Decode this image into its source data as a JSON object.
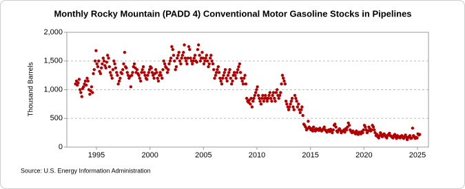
{
  "chart_data": {
    "type": "scatter",
    "title": "Monthly Rocky Mountain (PADD 4) Conventional Motor Gasoline Stocks in Pipelines",
    "y_label": "Thousand Barrels",
    "source": "Source: U.S. Energy Information Administration",
    "color": "#b30000",
    "grid": true,
    "xlim": [
      1992.23,
      2026.03
    ],
    "xticks": [
      1995,
      2000,
      2005,
      2010,
      2015,
      2020,
      2025
    ],
    "ylim": [
      0,
      2000
    ],
    "yticks": [
      0,
      500,
      {
        "value": 1000,
        "label": "1,000"
      },
      {
        "value": 1500,
        "label": "1,500"
      },
      {
        "value": 2000,
        "label": "2,000"
      }
    ],
    "x": [
      1993.04,
      1993.13,
      1993.21,
      1993.29,
      1993.38,
      1993.46,
      1993.54,
      1993.63,
      1993.71,
      1993.79,
      1993.88,
      1993.96,
      1994.04,
      1994.13,
      1994.21,
      1994.29,
      1994.38,
      1994.46,
      1994.54,
      1994.63,
      1994.71,
      1994.79,
      1994.88,
      1994.96,
      1995.04,
      1995.13,
      1995.21,
      1995.29,
      1995.38,
      1995.46,
      1995.54,
      1995.63,
      1995.71,
      1995.79,
      1995.88,
      1995.96,
      1996.04,
      1996.13,
      1996.21,
      1996.29,
      1996.38,
      1996.46,
      1996.54,
      1996.63,
      1996.71,
      1996.79,
      1996.88,
      1996.96,
      1997.04,
      1997.13,
      1997.21,
      1997.29,
      1997.38,
      1997.46,
      1997.54,
      1997.63,
      1997.71,
      1997.79,
      1997.88,
      1997.96,
      1998.04,
      1998.13,
      1998.21,
      1998.29,
      1998.38,
      1998.46,
      1998.54,
      1998.63,
      1998.71,
      1998.79,
      1998.88,
      1998.96,
      1999.04,
      1999.13,
      1999.21,
      1999.29,
      1999.38,
      1999.46,
      1999.54,
      1999.63,
      1999.71,
      1999.79,
      1999.88,
      1999.96,
      2000.04,
      2000.13,
      2000.21,
      2000.29,
      2000.38,
      2000.46,
      2000.54,
      2000.63,
      2000.71,
      2000.79,
      2000.88,
      2000.96,
      2001.04,
      2001.13,
      2001.21,
      2001.29,
      2001.38,
      2001.46,
      2001.54,
      2001.63,
      2001.71,
      2001.79,
      2001.88,
      2001.96,
      2002.04,
      2002.13,
      2002.21,
      2002.29,
      2002.38,
      2002.46,
      2002.54,
      2002.63,
      2002.71,
      2002.79,
      2002.88,
      2002.96,
      2003.04,
      2003.13,
      2003.21,
      2003.29,
      2003.38,
      2003.46,
      2003.54,
      2003.63,
      2003.71,
      2003.79,
      2003.88,
      2003.96,
      2004.04,
      2004.13,
      2004.21,
      2004.29,
      2004.38,
      2004.46,
      2004.54,
      2004.63,
      2004.71,
      2004.79,
      2004.88,
      2004.96,
      2005.04,
      2005.13,
      2005.21,
      2005.29,
      2005.38,
      2005.46,
      2005.54,
      2005.63,
      2005.71,
      2005.79,
      2005.88,
      2005.96,
      2006.04,
      2006.13,
      2006.21,
      2006.29,
      2006.38,
      2006.46,
      2006.54,
      2006.63,
      2006.71,
      2006.79,
      2006.88,
      2006.96,
      2007.04,
      2007.13,
      2007.21,
      2007.29,
      2007.38,
      2007.46,
      2007.54,
      2007.63,
      2007.71,
      2007.79,
      2007.88,
      2007.96,
      2008.04,
      2008.13,
      2008.21,
      2008.29,
      2008.38,
      2008.46,
      2008.54,
      2008.63,
      2008.71,
      2008.79,
      2008.88,
      2008.96,
      2009.04,
      2009.13,
      2009.21,
      2009.29,
      2009.38,
      2009.46,
      2009.54,
      2009.63,
      2009.71,
      2009.79,
      2009.88,
      2009.96,
      2010.04,
      2010.13,
      2010.21,
      2010.29,
      2010.38,
      2010.46,
      2010.54,
      2010.63,
      2010.71,
      2010.79,
      2010.88,
      2010.96,
      2011.04,
      2011.13,
      2011.21,
      2011.29,
      2011.38,
      2011.46,
      2011.54,
      2011.63,
      2011.71,
      2011.79,
      2011.88,
      2011.96,
      2012.04,
      2012.13,
      2012.21,
      2012.29,
      2012.38,
      2012.46,
      2012.54,
      2012.63,
      2012.71,
      2012.79,
      2012.88,
      2012.96,
      2013.04,
      2013.13,
      2013.21,
      2013.29,
      2013.38,
      2013.46,
      2013.54,
      2013.63,
      2013.71,
      2013.79,
      2013.88,
      2013.96,
      2014.04,
      2014.13,
      2014.21,
      2014.29,
      2014.38,
      2014.46,
      2014.54,
      2014.63,
      2014.71,
      2014.79,
      2014.88,
      2014.96,
      2015.04,
      2015.13,
      2015.21,
      2015.29,
      2015.38,
      2015.46,
      2015.54,
      2015.63,
      2015.71,
      2015.79,
      2015.88,
      2015.96,
      2016.04,
      2016.13,
      2016.21,
      2016.29,
      2016.38,
      2016.46,
      2016.54,
      2016.63,
      2016.71,
      2016.79,
      2016.88,
      2016.96,
      2017.04,
      2017.13,
      2017.21,
      2017.29,
      2017.38,
      2017.46,
      2017.54,
      2017.63,
      2017.71,
      2017.79,
      2017.88,
      2017.96,
      2018.04,
      2018.13,
      2018.21,
      2018.29,
      2018.38,
      2018.46,
      2018.54,
      2018.63,
      2018.71,
      2018.79,
      2018.88,
      2018.96,
      2019.04,
      2019.13,
      2019.21,
      2019.29,
      2019.38,
      2019.46,
      2019.54,
      2019.63,
      2019.71,
      2019.79,
      2019.88,
      2019.96,
      2020.04,
      2020.13,
      2020.21,
      2020.29,
      2020.38,
      2020.46,
      2020.54,
      2020.63,
      2020.71,
      2020.79,
      2020.88,
      2020.96,
      2021.04,
      2021.13,
      2021.21,
      2021.29,
      2021.38,
      2021.46,
      2021.54,
      2021.63,
      2021.71,
      2021.79,
      2021.88,
      2021.96,
      2022.04,
      2022.13,
      2022.21,
      2022.29,
      2022.38,
      2022.46,
      2022.54,
      2022.63,
      2022.71,
      2022.79,
      2022.88,
      2022.96,
      2023.04,
      2023.13,
      2023.21,
      2023.29,
      2023.38,
      2023.46,
      2023.54,
      2023.63,
      2023.71,
      2023.79,
      2023.88,
      2023.96,
      2024.04,
      2024.13,
      2024.21,
      2024.29,
      2024.38,
      2024.46,
      2024.54,
      2024.63,
      2024.71,
      2024.79,
      2024.88,
      2024.96,
      2025.04,
      2025.13,
      2025.21
    ],
    "values": [
      1100,
      1150,
      1080,
      1120,
      1180,
      1000,
      950,
      880,
      1020,
      1050,
      1100,
      1150,
      1080,
      1200,
      1150,
      1000,
      920,
      980,
      1050,
      950,
      1280,
      1350,
      1500,
      1680,
      1450,
      1400,
      1500,
      1320,
      1280,
      1380,
      1450,
      1550,
      1500,
      1420,
      1380,
      1480,
      1600,
      1550,
      1400,
      1300,
      1250,
      1200,
      1350,
      1500,
      1450,
      1380,
      1300,
      1250,
      1100,
      1150,
      1200,
      1300,
      1280,
      1350,
      1450,
      1650,
      1400,
      1380,
      1300,
      1250,
      1200,
      1230,
      1050,
      1250,
      1300,
      1400,
      1450,
      1380,
      1300,
      1350,
      1280,
      1250,
      1200,
      1150,
      1300,
      1350,
      1400,
      1300,
      1250,
      1200,
      1180,
      1250,
      1300,
      1350,
      1400,
      1380,
      1300,
      1250,
      1200,
      1280,
      1350,
      1300,
      1200,
      1150,
      1250,
      1300,
      1250,
      1200,
      1350,
      1500,
      1450,
      1400,
      1380,
      1300,
      1350,
      1450,
      1500,
      1550,
      1750,
      1700,
      1600,
      1500,
      1350,
      1400,
      1550,
      1600,
      1650,
      1500,
      1450,
      1550,
      1600,
      1650,
      1780,
      1550,
      1500,
      1450,
      1550,
      1750,
      1700,
      1550,
      1500,
      1450,
      1500,
      1550,
      1600,
      1500,
      1480,
      1700,
      1780,
      1600,
      1500,
      1550,
      1650,
      1550,
      1450,
      1500,
      1550,
      1600,
      1500,
      1400,
      1450,
      1550,
      1600,
      1500,
      1450,
      1350,
      1200,
      1250,
      1300,
      1350,
      1400,
      1300,
      1200,
      1150,
      1100,
      1200,
      1250,
      1300,
      1350,
      1200,
      1150,
      1250,
      1300,
      1350,
      1200,
      1100,
      1150,
      1250,
      1300,
      1250,
      1200,
      1300,
      1350,
      1400,
      1450,
      1300,
      1200,
      1150,
      1100,
      1200,
      1250,
      1100,
      850,
      800,
      780,
      820,
      750,
      850,
      700,
      800,
      850,
      900,
      950,
      1000,
      1050,
      900,
      850,
      800,
      750,
      850,
      900,
      800,
      850,
      900,
      850,
      800,
      850,
      900,
      950,
      850,
      800,
      900,
      950,
      850,
      800,
      950,
      1000,
      900,
      850,
      900,
      950,
      1100,
      1250,
      1200,
      1150,
      1100,
      800,
      750,
      700,
      650,
      700,
      750,
      800,
      850,
      700,
      650,
      900,
      850,
      800,
      700,
      750,
      650,
      600,
      650,
      700,
      550,
      400,
      380,
      350,
      300,
      320,
      450,
      350,
      330,
      300,
      320,
      280,
      350,
      300,
      280,
      320,
      300,
      310,
      290,
      330,
      300,
      280,
      300,
      320,
      350,
      300,
      280,
      260,
      290,
      300,
      270,
      310,
      290,
      250,
      300,
      380,
      400,
      350,
      280,
      260,
      300,
      320,
      290,
      250,
      270,
      280,
      300,
      260,
      320,
      300,
      350,
      420,
      380,
      300,
      270,
      250,
      280,
      260,
      250,
      230,
      280,
      240,
      220,
      260,
      250,
      230,
      270,
      250,
      300,
      380,
      350,
      300,
      250,
      280,
      350,
      320,
      280,
      300,
      380,
      350,
      300,
      250,
      200,
      220,
      180,
      160,
      200,
      250,
      220,
      180,
      200,
      230,
      210,
      180,
      160,
      200,
      220,
      240,
      200,
      190,
      170,
      160,
      200,
      220,
      180,
      150,
      200,
      170,
      180,
      160,
      190,
      200,
      170,
      150,
      180,
      210,
      170,
      130,
      170,
      180,
      200,
      150,
      160,
      330,
      200,
      180,
      150,
      170,
      160,
      230,
      210,
      220
    ]
  }
}
